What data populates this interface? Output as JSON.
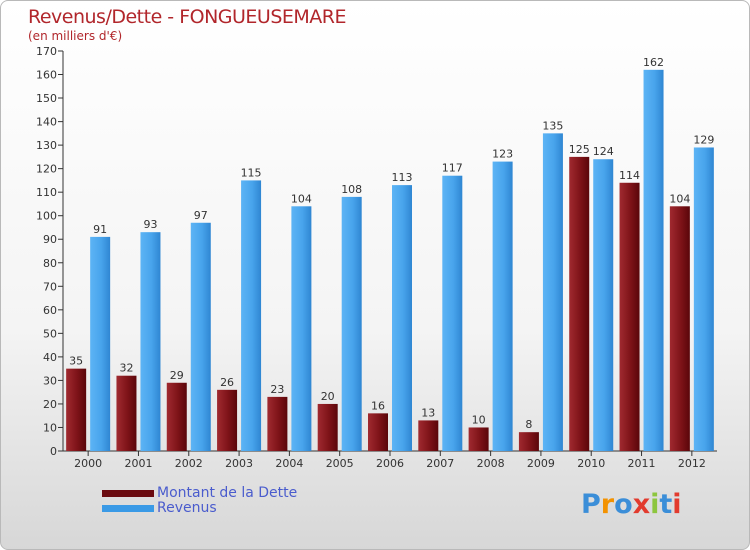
{
  "header": {
    "title": "Revenus/Dette - FONGUEUSEMARE",
    "subtitle": "(en milliers d'€)"
  },
  "legend": {
    "items": [
      {
        "label": "Montant de la Dette",
        "color": "#6b0b10"
      },
      {
        "label": "Revenus",
        "color": "#3a9ae6"
      }
    ]
  },
  "logo": {
    "text": "Proxiti",
    "letter_colors": [
      "#3b8ed8",
      "#f39200",
      "#3b8ed8",
      "#e23b2e",
      "#8dc63f",
      "#3b8ed8",
      "#e23b2e"
    ]
  },
  "chart_data": {
    "type": "bar",
    "title": "Revenus/Dette - FONGUEUSEMARE",
    "ylabel": "(en milliers d'€)",
    "categories": [
      "2000",
      "2001",
      "2002",
      "2003",
      "2004",
      "2005",
      "2006",
      "2007",
      "2008",
      "2009",
      "2010",
      "2011",
      "2012"
    ],
    "series": [
      {
        "name": "Montant de la Dette",
        "values": [
          35,
          32,
          29,
          26,
          23,
          20,
          16,
          13,
          10,
          8,
          125,
          114,
          104
        ],
        "color": "#8b1a1f"
      },
      {
        "name": "Revenus",
        "values": [
          91,
          93,
          97,
          115,
          104,
          108,
          113,
          117,
          123,
          135,
          124,
          162,
          129
        ],
        "color": "#4aa6ee"
      }
    ],
    "ylim": [
      0,
      170
    ],
    "yticks": [
      0,
      10,
      20,
      30,
      40,
      50,
      60,
      70,
      80,
      90,
      100,
      110,
      120,
      130,
      140,
      150,
      160,
      170
    ],
    "grid": false,
    "legend_position": "bottom-left"
  }
}
